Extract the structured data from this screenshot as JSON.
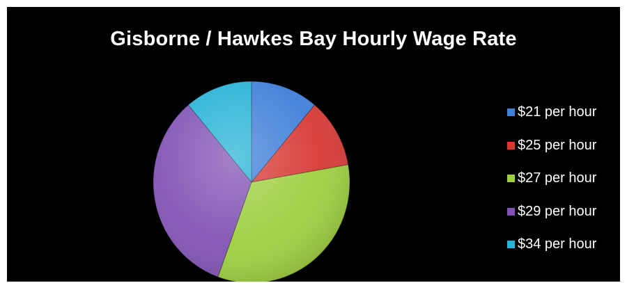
{
  "chart_data": {
    "type": "pie",
    "title": "Gisborne / Hawkes Bay Hourly Wage Rate",
    "categories": [
      "$21 per hour",
      "$25 per hour",
      "$27 per hour",
      "$29 per hour",
      "$34 per hour"
    ],
    "values": [
      11.1,
      11.1,
      33.3,
      33.3,
      11.1
    ],
    "colors": [
      "#3f7fd8",
      "#d73a36",
      "#9ed040",
      "#8153b4",
      "#27b3d6"
    ],
    "legend": "right"
  }
}
